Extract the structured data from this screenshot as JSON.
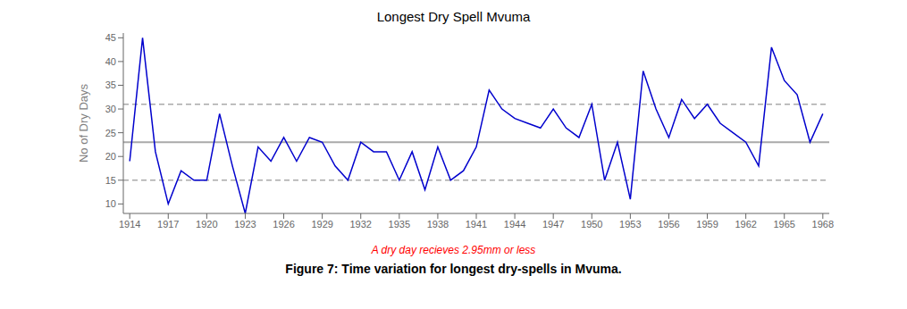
{
  "chart_data": {
    "type": "line",
    "title": "Longest Dry Spell Mvuma",
    "y_label": "No of Dry Days",
    "annotations": [
      {
        "text": "A dry day recieves 2.95mm or less",
        "color": "#ff0000"
      }
    ],
    "caption": "Figure 7: Time variation for longest dry-spells in Mvuma.",
    "x": [
      1914,
      1915,
      1916,
      1917,
      1918,
      1919,
      1920,
      1921,
      1922,
      1923,
      1924,
      1925,
      1926,
      1927,
      1928,
      1929,
      1930,
      1931,
      1932,
      1933,
      1934,
      1935,
      1936,
      1937,
      1938,
      1939,
      1940,
      1941,
      1942,
      1943,
      1944,
      1945,
      1946,
      1947,
      1948,
      1949,
      1950,
      1951,
      1952,
      1953,
      1954,
      1955,
      1956,
      1957,
      1958,
      1959,
      1960,
      1961,
      1962,
      1963,
      1964,
      1965,
      1966,
      1967,
      1968
    ],
    "values": [
      19,
      45,
      21,
      10,
      17,
      15,
      15,
      29,
      18,
      8,
      22,
      19,
      24,
      19,
      24,
      23,
      18,
      15,
      23,
      21,
      21,
      15,
      21,
      13,
      22,
      15,
      17,
      22,
      34,
      30,
      28,
      27,
      26,
      30,
      26,
      24,
      31,
      15,
      23,
      11,
      38,
      30,
      24,
      32,
      28,
      31,
      27,
      25,
      23,
      18,
      43,
      36,
      33,
      23,
      29
    ],
    "color": "#0000CD",
    "hlines": [
      {
        "value": 23,
        "color": "#aaaaaa",
        "line_style": "solid"
      },
      {
        "value": 31,
        "color": "#aaaaaa",
        "line_style": "dashed"
      },
      {
        "value": 15,
        "color": "#aaaaaa",
        "line_style": "dashed"
      }
    ],
    "xlim": [
      1913.5,
      1968.5
    ],
    "xticks": [
      1914,
      1917,
      1920,
      1923,
      1926,
      1929,
      1932,
      1935,
      1938,
      1941,
      1944,
      1947,
      1950,
      1953,
      1956,
      1959,
      1962,
      1965,
      1968
    ],
    "ylim": [
      8,
      46
    ],
    "yticks": [
      10,
      15,
      20,
      25,
      30,
      35,
      40,
      45
    ],
    "grid": false
  }
}
